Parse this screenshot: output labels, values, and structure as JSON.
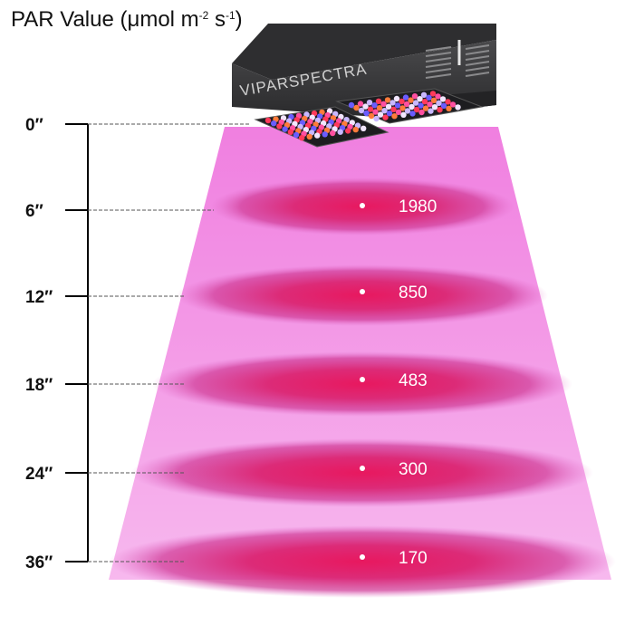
{
  "title": {
    "prefix": "PAR Value (μmol m",
    "exp1": "-2",
    "mid": " s",
    "exp2": "-1",
    "suffix": ")"
  },
  "brand": "VIPARSPECTRA",
  "distances": [
    {
      "label": "0″",
      "value": null
    },
    {
      "label": "6″",
      "value": "1980"
    },
    {
      "label": "12″",
      "value": "850"
    },
    {
      "label": "18″",
      "value": "483"
    },
    {
      "label": "24″",
      "value": "300"
    },
    {
      "label": "36″",
      "value": "170"
    }
  ],
  "colors": {
    "beam": "#f39be6",
    "spot": "#e0246f",
    "ruler": "#000000",
    "lamp_body": "#3a3a3c",
    "value_text": "#ffffff"
  }
}
